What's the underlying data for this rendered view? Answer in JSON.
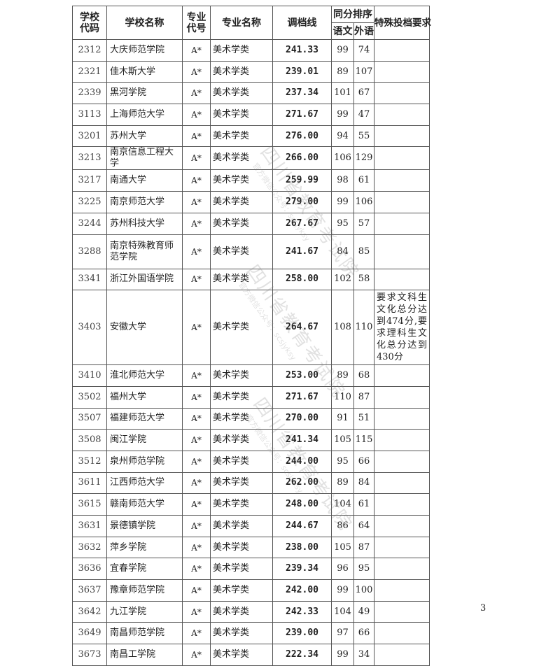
{
  "header": {
    "school_code": "学校代码",
    "school_name": "学校名称",
    "major_code": "专业代号",
    "major_name": "专业名称",
    "cutoff": "调档线",
    "tie_rank": "同分排序",
    "chinese": "语文",
    "foreign": "外语",
    "special": "特殊投档要求"
  },
  "rows": [
    {
      "code": "2312",
      "name": "大庆师范学院",
      "mcode": "A*",
      "major": "美术学类",
      "score": "241.33",
      "yw": "99",
      "wy": "74",
      "req": ""
    },
    {
      "code": "2321",
      "name": "佳木斯大学",
      "mcode": "A*",
      "major": "美术学类",
      "score": "239.01",
      "yw": "89",
      "wy": "107",
      "req": ""
    },
    {
      "code": "2339",
      "name": "黑河学院",
      "mcode": "A*",
      "major": "美术学类",
      "score": "237.34",
      "yw": "101",
      "wy": "67",
      "req": ""
    },
    {
      "code": "3113",
      "name": "上海师范大学",
      "mcode": "A*",
      "major": "美术学类",
      "score": "271.67",
      "yw": "99",
      "wy": "47",
      "req": ""
    },
    {
      "code": "3201",
      "name": "苏州大学",
      "mcode": "A*",
      "major": "美术学类",
      "score": "276.00",
      "yw": "94",
      "wy": "55",
      "req": ""
    },
    {
      "code": "3213",
      "name": "南京信息工程大学",
      "mcode": "A*",
      "major": "美术学类",
      "score": "266.00",
      "yw": "106",
      "wy": "129",
      "req": ""
    },
    {
      "code": "3217",
      "name": "南通大学",
      "mcode": "A*",
      "major": "美术学类",
      "score": "259.99",
      "yw": "98",
      "wy": "61",
      "req": ""
    },
    {
      "code": "3225",
      "name": "南京师范大学",
      "mcode": "A*",
      "major": "美术学类",
      "score": "279.00",
      "yw": "99",
      "wy": "106",
      "req": ""
    },
    {
      "code": "3244",
      "name": "苏州科技大学",
      "mcode": "A*",
      "major": "美术学类",
      "score": "267.67",
      "yw": "95",
      "wy": "57",
      "req": ""
    },
    {
      "code": "3288",
      "name": "南京特殊教育师范学院",
      "mcode": "A*",
      "major": "美术学类",
      "score": "241.67",
      "yw": "84",
      "wy": "85",
      "req": ""
    },
    {
      "code": "3341",
      "name": "浙江外国语学院",
      "mcode": "A*",
      "major": "美术学类",
      "score": "258.00",
      "yw": "102",
      "wy": "58",
      "req": ""
    },
    {
      "code": "3403",
      "name": "安徽大学",
      "mcode": "A*",
      "major": "美术学类",
      "score": "264.67",
      "yw": "108",
      "wy": "110",
      "req": "要求文科生文化总分达到474分,要求理科生文化总分达到430分"
    },
    {
      "code": "3410",
      "name": "淮北师范大学",
      "mcode": "A*",
      "major": "美术学类",
      "score": "253.00",
      "yw": "89",
      "wy": "68",
      "req": ""
    },
    {
      "code": "3502",
      "name": "福州大学",
      "mcode": "A*",
      "major": "美术学类",
      "score": "271.67",
      "yw": "110",
      "wy": "87",
      "req": ""
    },
    {
      "code": "3507",
      "name": "福建师范大学",
      "mcode": "A*",
      "major": "美术学类",
      "score": "270.00",
      "yw": "91",
      "wy": "51",
      "req": ""
    },
    {
      "code": "3508",
      "name": "闽江学院",
      "mcode": "A*",
      "major": "美术学类",
      "score": "241.34",
      "yw": "105",
      "wy": "115",
      "req": ""
    },
    {
      "code": "3512",
      "name": "泉州师范学院",
      "mcode": "A*",
      "major": "美术学类",
      "score": "244.00",
      "yw": "95",
      "wy": "66",
      "req": ""
    },
    {
      "code": "3611",
      "name": "江西师范大学",
      "mcode": "A*",
      "major": "美术学类",
      "score": "262.00",
      "yw": "89",
      "wy": "84",
      "req": ""
    },
    {
      "code": "3615",
      "name": "赣南师范大学",
      "mcode": "A*",
      "major": "美术学类",
      "score": "248.00",
      "yw": "104",
      "wy": "61",
      "req": ""
    },
    {
      "code": "3631",
      "name": "景德镇学院",
      "mcode": "A*",
      "major": "美术学类",
      "score": "244.67",
      "yw": "86",
      "wy": "64",
      "req": ""
    },
    {
      "code": "3632",
      "name": "萍乡学院",
      "mcode": "A*",
      "major": "美术学类",
      "score": "238.00",
      "yw": "105",
      "wy": "87",
      "req": ""
    },
    {
      "code": "3636",
      "name": "宜春学院",
      "mcode": "A*",
      "major": "美术学类",
      "score": "239.34",
      "yw": "96",
      "wy": "95",
      "req": ""
    },
    {
      "code": "3637",
      "name": "豫章师范学院",
      "mcode": "A*",
      "major": "美术学类",
      "score": "242.00",
      "yw": "99",
      "wy": "100",
      "req": ""
    },
    {
      "code": "3642",
      "name": "九江学院",
      "mcode": "A*",
      "major": "美术学类",
      "score": "242.33",
      "yw": "104",
      "wy": "49",
      "req": ""
    },
    {
      "code": "3649",
      "name": "南昌师范学院",
      "mcode": "A*",
      "major": "美术学类",
      "score": "239.00",
      "yw": "97",
      "wy": "66",
      "req": ""
    },
    {
      "code": "3673",
      "name": "南昌工学院",
      "mcode": "A*",
      "major": "美术学类",
      "score": "222.34",
      "yw": "99",
      "wy": "34",
      "req": ""
    }
  ],
  "watermark": {
    "main": "四川省教育考试院",
    "sub": "官方微信公众号：scsjyksy"
  },
  "page_number": "3"
}
